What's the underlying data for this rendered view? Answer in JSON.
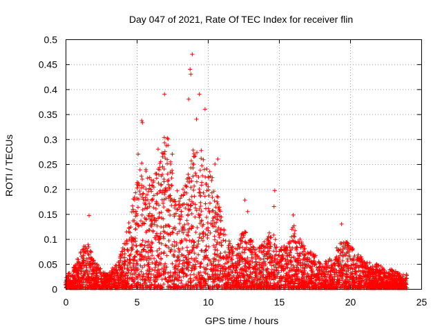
{
  "chart_data": {
    "type": "scatter",
    "title": "Day 047 of 2021, Rate Of TEC Index for receiver flin",
    "xlabel": "GPS time / hours",
    "ylabel": "ROTI / TECUs",
    "xlim": [
      0,
      25
    ],
    "ylim": [
      0,
      0.5
    ],
    "xticks": [
      "0",
      "5",
      "10",
      "15",
      "20",
      "25"
    ],
    "yticks": [
      "0",
      "0.05",
      "0.1",
      "0.15",
      "0.2",
      "0.25",
      "0.3",
      "0.35",
      "0.4",
      "0.45",
      "0.5"
    ],
    "grid": true,
    "marker": "+",
    "series_color": "#ff0000",
    "envelope": {
      "x": [
        0,
        0.5,
        1,
        1.5,
        2,
        2.5,
        3,
        3.5,
        4,
        4.5,
        5,
        5.5,
        6,
        6.5,
        7,
        7.5,
        8,
        8.5,
        9,
        9.5,
        10,
        10.5,
        11,
        11.5,
        12,
        12.5,
        13,
        13.5,
        14,
        14.5,
        15,
        15.5,
        16,
        16.5,
        17,
        17.5,
        18,
        18.5,
        19,
        19.5,
        20,
        20.5,
        21,
        21.5,
        22,
        22.5,
        23,
        23.5,
        24
      ],
      "y": [
        0.03,
        0.04,
        0.07,
        0.1,
        0.06,
        0.04,
        0.03,
        0.05,
        0.08,
        0.14,
        0.22,
        0.27,
        0.22,
        0.24,
        0.32,
        0.26,
        0.18,
        0.22,
        0.3,
        0.28,
        0.25,
        0.22,
        0.14,
        0.1,
        0.08,
        0.12,
        0.1,
        0.08,
        0.1,
        0.12,
        0.08,
        0.09,
        0.13,
        0.1,
        0.08,
        0.07,
        0.05,
        0.06,
        0.08,
        0.1,
        0.09,
        0.07,
        0.06,
        0.05,
        0.05,
        0.04,
        0.04,
        0.03,
        0.03
      ]
    },
    "outliers": {
      "x": [
        8.9,
        8.75,
        8.8,
        9.4,
        6.95,
        9.8,
        8.65,
        5.35,
        5.4,
        9.2,
        7.2,
        7.5,
        12.6,
        14.7,
        14.65,
        12.8,
        1.65,
        16.0,
        19.4,
        5.1,
        10.7,
        10.5,
        6.5
      ],
      "y": [
        0.47,
        0.44,
        0.43,
        0.39,
        0.39,
        0.36,
        0.38,
        0.337,
        0.333,
        0.34,
        0.3,
        0.27,
        0.178,
        0.197,
        0.165,
        0.155,
        0.147,
        0.148,
        0.13,
        0.27,
        0.26,
        0.25,
        0.28
      ]
    }
  }
}
